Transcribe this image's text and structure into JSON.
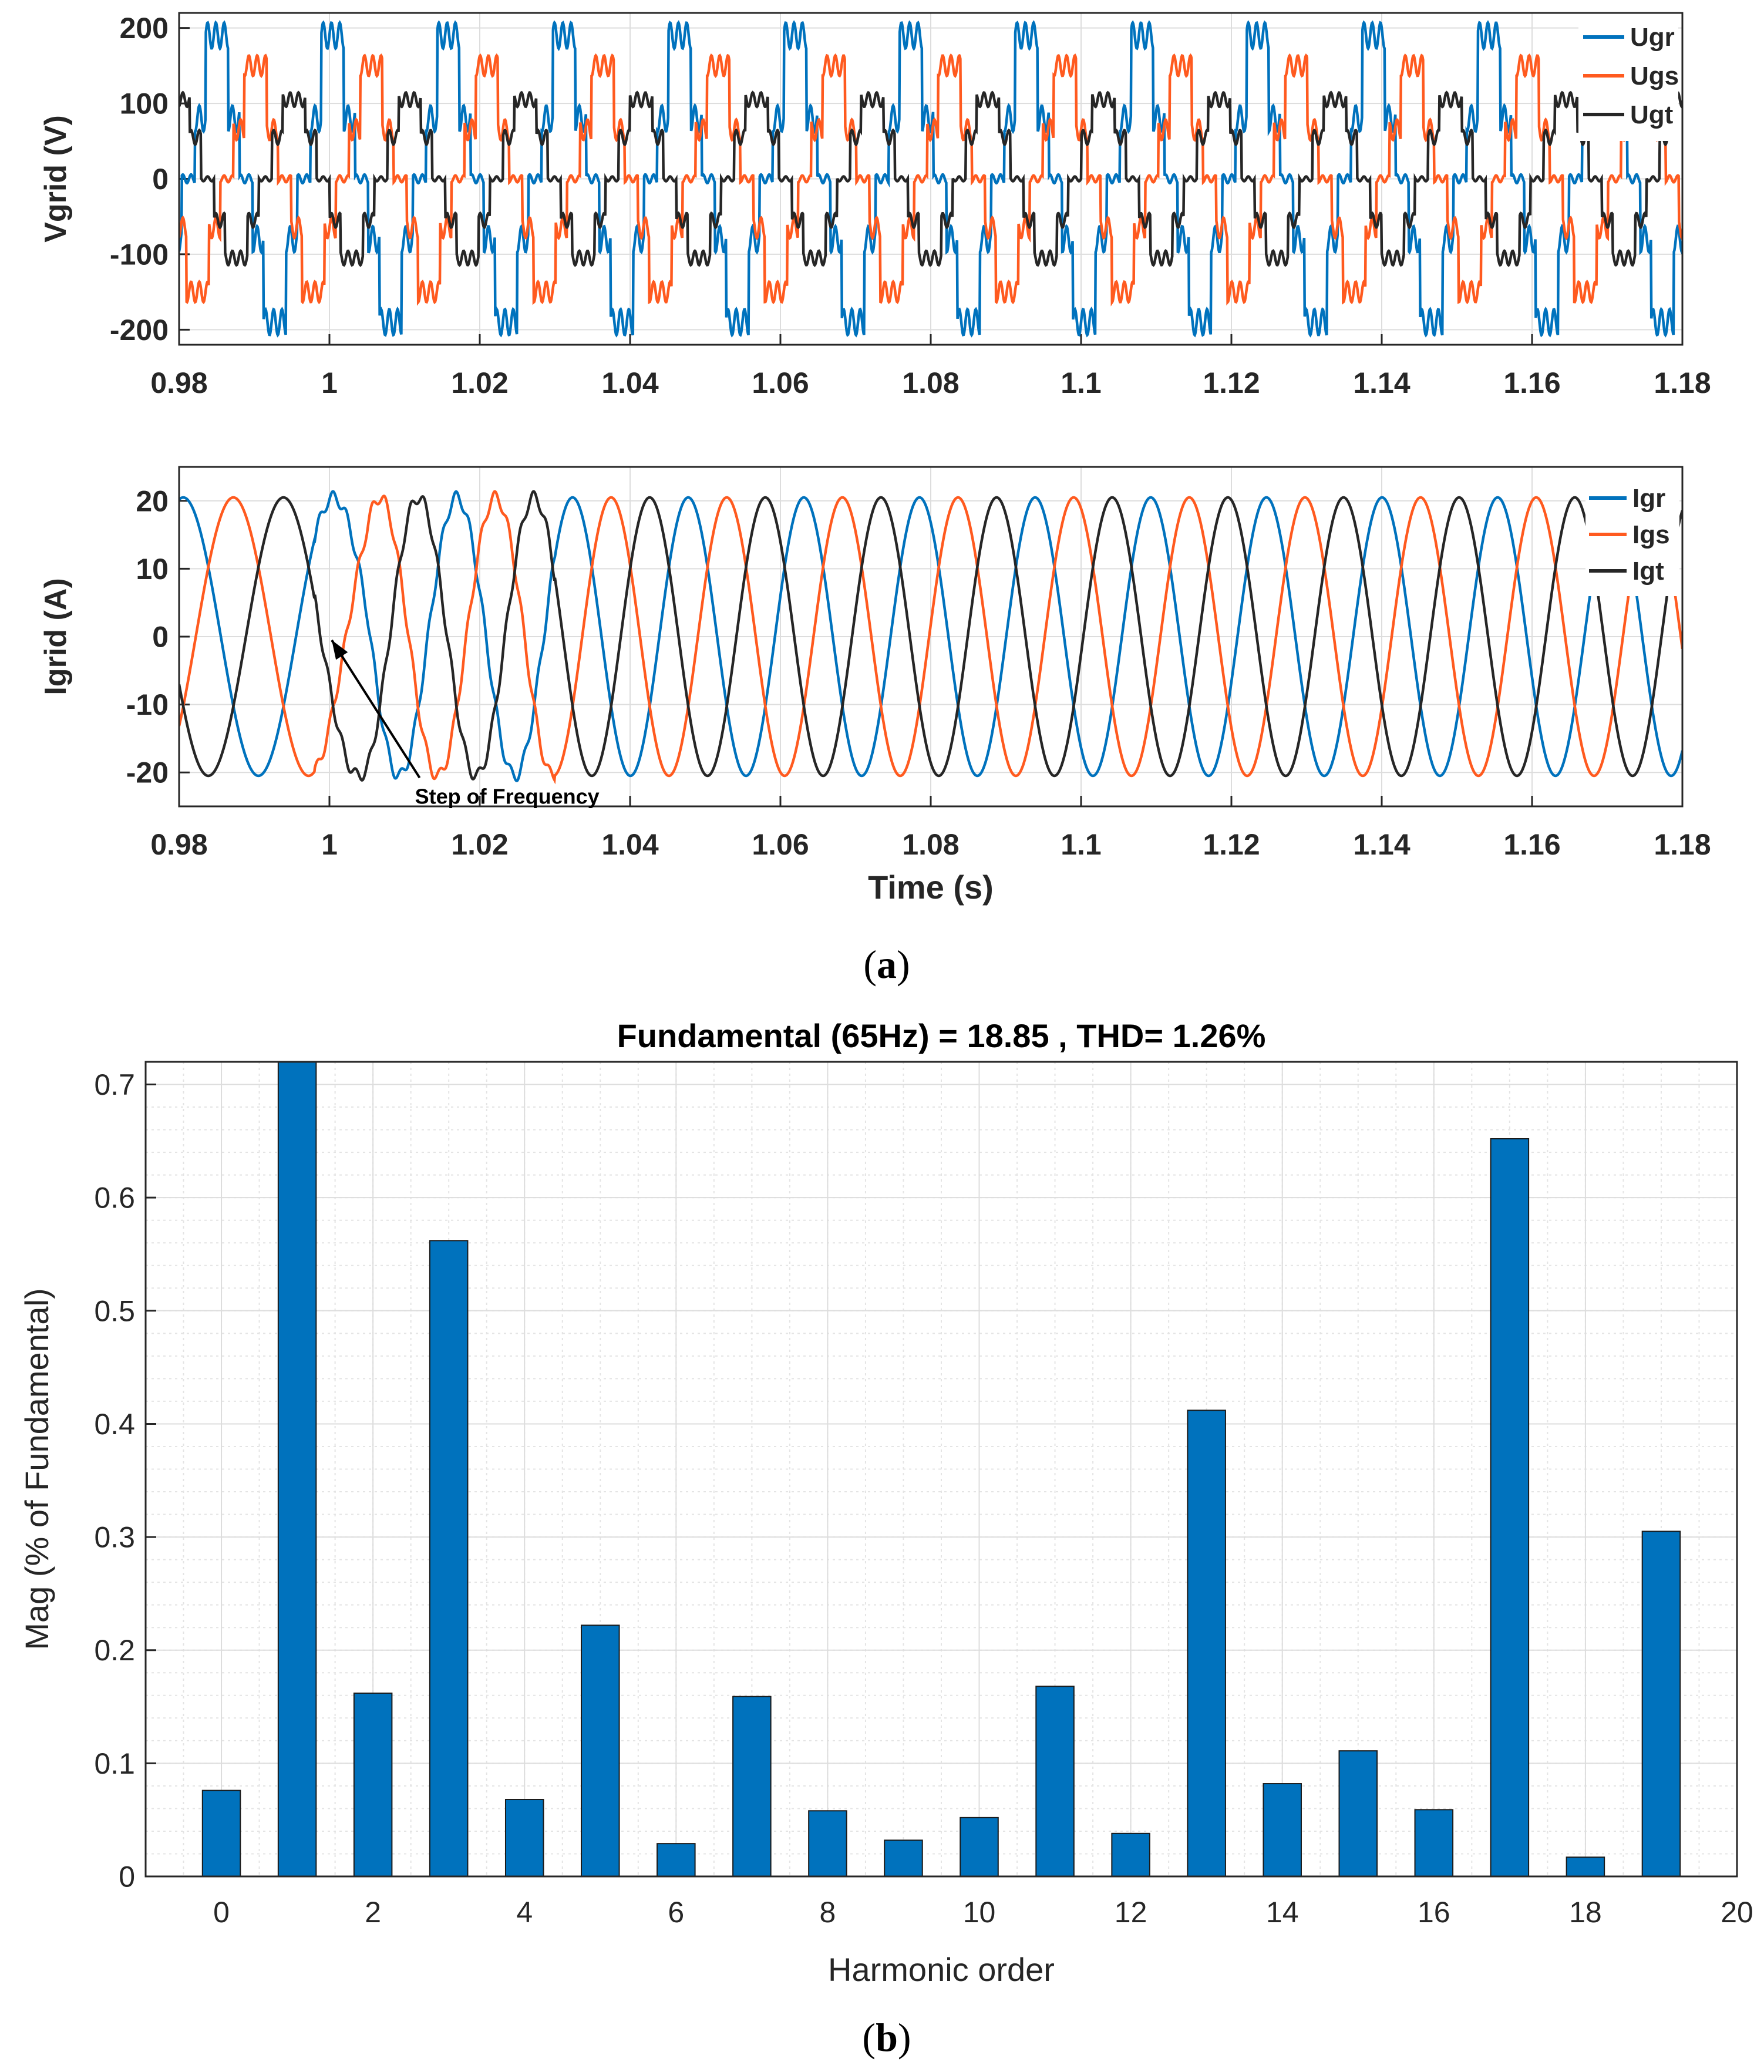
{
  "captions": {
    "a_prefix": "(",
    "a_letter": "a",
    "a_suffix": ")",
    "b_prefix": "(",
    "b_letter": "b",
    "b_suffix": ")"
  },
  "colors": {
    "blue": "#0072BD",
    "orange": "#FF5A1F",
    "black": "#262626",
    "bar": "#0072BD",
    "grid": "#DDDDDD",
    "axis": "#262626"
  },
  "chart_data": [
    {
      "id": "vgrid",
      "type": "line",
      "title": "",
      "xlabel": "",
      "ylabel": "Vgrid (V)",
      "xlim": [
        0.98,
        1.18
      ],
      "ylim": [
        -220,
        220
      ],
      "xticks": [
        "0.98",
        "1",
        "1.02",
        "1.04",
        "1.06",
        "1.08",
        "1.1",
        "1.12",
        "1.14",
        "1.16",
        "1.18"
      ],
      "xtick_values": [
        0.98,
        1.0,
        1.02,
        1.04,
        1.06,
        1.08,
        1.1,
        1.12,
        1.14,
        1.16,
        1.18
      ],
      "yticks": [
        "200",
        "100",
        "0",
        "-100",
        "-200"
      ],
      "ytick_values": [
        200,
        100,
        0,
        -100,
        -200
      ],
      "grid": true,
      "legend_position": "top-right",
      "frequency_hz": 65,
      "series": [
        {
          "name": "Ugr",
          "color": "#0072BD",
          "phase_deg": 80,
          "levels": [
            0,
            80,
            190
          ]
        },
        {
          "name": "Ugs",
          "color": "#FF5A1F",
          "phase_deg": -40,
          "levels": [
            0,
            65,
            150
          ]
        },
        {
          "name": "Ugt",
          "color": "#262626",
          "phase_deg": 200,
          "levels": [
            0,
            55,
            105
          ]
        }
      ]
    },
    {
      "id": "igrid",
      "type": "line",
      "title": "",
      "xlabel": "Time (s)",
      "ylabel": "Igrid (A)",
      "xlim": [
        0.98,
        1.18
      ],
      "ylim": [
        -25,
        25
      ],
      "xticks": [
        "0.98",
        "1",
        "1.02",
        "1.04",
        "1.06",
        "1.08",
        "1.1",
        "1.12",
        "1.14",
        "1.16",
        "1.18"
      ],
      "xtick_values": [
        0.98,
        1.0,
        1.02,
        1.04,
        1.06,
        1.08,
        1.1,
        1.12,
        1.14,
        1.16,
        1.18
      ],
      "yticks": [
        "20",
        "10",
        "0",
        "-10",
        "-20"
      ],
      "ytick_values": [
        20,
        10,
        0,
        -10,
        -20
      ],
      "grid": true,
      "legend_position": "top-right",
      "amplitude": 20.5,
      "frequency_before_hz": 50,
      "frequency_after_hz": 65,
      "step_time": 1.005,
      "annotation": {
        "text": "Step of Frequency",
        "x": 1.0,
        "y": 0,
        "text_x": 1.012,
        "text_y": -22
      },
      "series": [
        {
          "name": "Igr",
          "color": "#0072BD",
          "phase_deg": 80
        },
        {
          "name": "Igs",
          "color": "#FF5A1F",
          "phase_deg": -40
        },
        {
          "name": "Igt",
          "color": "#262626",
          "phase_deg": 200
        }
      ]
    },
    {
      "id": "fft",
      "type": "bar",
      "title": "Fundamental (65Hz) = 18.85 , THD= 1.26%",
      "xlabel": "Harmonic order",
      "ylabel": "Mag (% of Fundamental)",
      "xlim": [
        -1,
        20
      ],
      "ylim": [
        0,
        0.72
      ],
      "xticks": [
        "0",
        "2",
        "4",
        "6",
        "8",
        "10",
        "12",
        "14",
        "16",
        "18",
        "20"
      ],
      "xtick_values": [
        0,
        2,
        4,
        6,
        8,
        10,
        12,
        14,
        16,
        18,
        20
      ],
      "yticks": [
        "0",
        "0.1",
        "0.2",
        "0.3",
        "0.4",
        "0.5",
        "0.6",
        "0.7"
      ],
      "ytick_values": [
        0,
        0.1,
        0.2,
        0.3,
        0.4,
        0.5,
        0.6,
        0.7
      ],
      "grid": true,
      "categories": [
        0,
        1,
        2,
        3,
        4,
        5,
        6,
        7,
        8,
        9,
        10,
        11,
        12,
        13,
        14,
        15,
        16,
        17,
        18,
        19
      ],
      "values": [
        0.076,
        0.72,
        0.162,
        0.562,
        0.068,
        0.222,
        0.029,
        0.159,
        0.058,
        0.032,
        0.052,
        0.168,
        0.038,
        0.412,
        0.082,
        0.111,
        0.059,
        0.652,
        0.017,
        0.305
      ]
    }
  ]
}
